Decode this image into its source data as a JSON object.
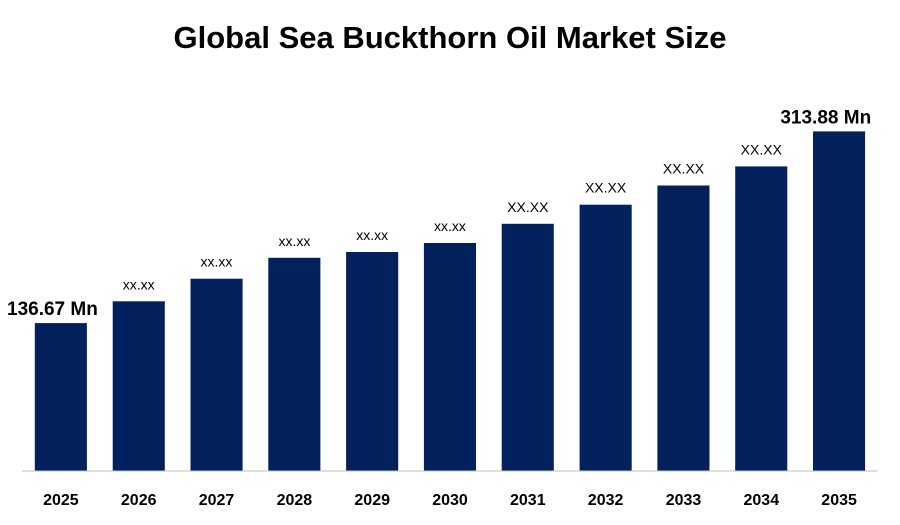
{
  "chart_data": {
    "type": "bar",
    "title": "Global Sea Buckthorn Oil Market Size",
    "xlabel": "",
    "ylabel": "",
    "categories": [
      "2025",
      "2026",
      "2027",
      "2028",
      "2029",
      "2030",
      "2031",
      "2032",
      "2033",
      "2034",
      "2035"
    ],
    "values": [
      136.67,
      156.9,
      177.8,
      197.1,
      202.4,
      210.8,
      228.5,
      246.2,
      263.9,
      281.6,
      313.88
    ],
    "data_labels": [
      "136.67 Mn",
      "xx.xx",
      "xx.xx",
      "xx.xx",
      "xx.xx",
      "xx.xx",
      "XX.XX",
      "XX.XX",
      "XX.XX",
      "XX.XX",
      "313.88 Mn"
    ],
    "ylim": [
      0,
      330
    ],
    "grid": false,
    "legend": "none",
    "bar_color": "#03215c"
  }
}
